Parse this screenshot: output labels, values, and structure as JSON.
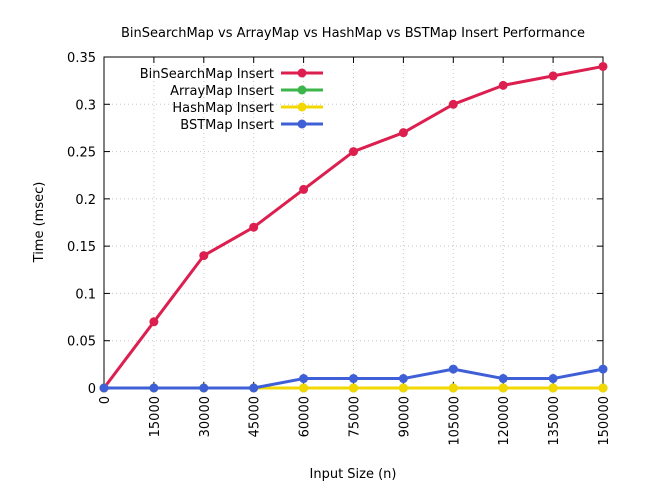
{
  "chart_data": {
    "type": "line",
    "title": "BinSearchMap vs ArrayMap vs HashMap vs BSTMap Insert Performance",
    "xlabel": "Input Size (n)",
    "ylabel": "Time (msec)",
    "x": [
      0,
      15000,
      30000,
      45000,
      60000,
      75000,
      90000,
      105000,
      120000,
      135000,
      150000
    ],
    "xlim": [
      0,
      150000
    ],
    "ylim": [
      0,
      0.35
    ],
    "x_ticks": [
      "0",
      "15000",
      "30000",
      "45000",
      "60000",
      "75000",
      "90000",
      "105000",
      "120000",
      "135000",
      "150000"
    ],
    "y_ticks": [
      0,
      0.05,
      0.1,
      0.15,
      0.2,
      0.25,
      0.3,
      0.35
    ],
    "y_tick_labels": [
      "0",
      "0.05",
      "0.1",
      "0.15",
      "0.2",
      "0.25",
      "0.3",
      "0.35"
    ],
    "grid": true,
    "legend_position": "top-left",
    "series": [
      {
        "name": "BinSearchMap Insert",
        "color": "#dc1f4f",
        "values": [
          0,
          0.07,
          0.14,
          0.17,
          0.21,
          0.25,
          0.27,
          0.3,
          0.32,
          0.33,
          0.34
        ]
      },
      {
        "name": "ArrayMap Insert",
        "color": "#3cb54a",
        "values": [
          0,
          0,
          0,
          0,
          0,
          0,
          0,
          0,
          0,
          0,
          0
        ]
      },
      {
        "name": "HashMap Insert",
        "color": "#f2d800",
        "values": [
          0,
          0,
          0,
          0,
          0,
          0,
          0,
          0,
          0,
          0,
          0
        ]
      },
      {
        "name": "BSTMap Insert",
        "color": "#3f5fd6",
        "values": [
          0,
          0,
          0,
          0,
          0.01,
          0.01,
          0.01,
          0.02,
          0.01,
          0.01,
          0.02
        ]
      }
    ]
  }
}
